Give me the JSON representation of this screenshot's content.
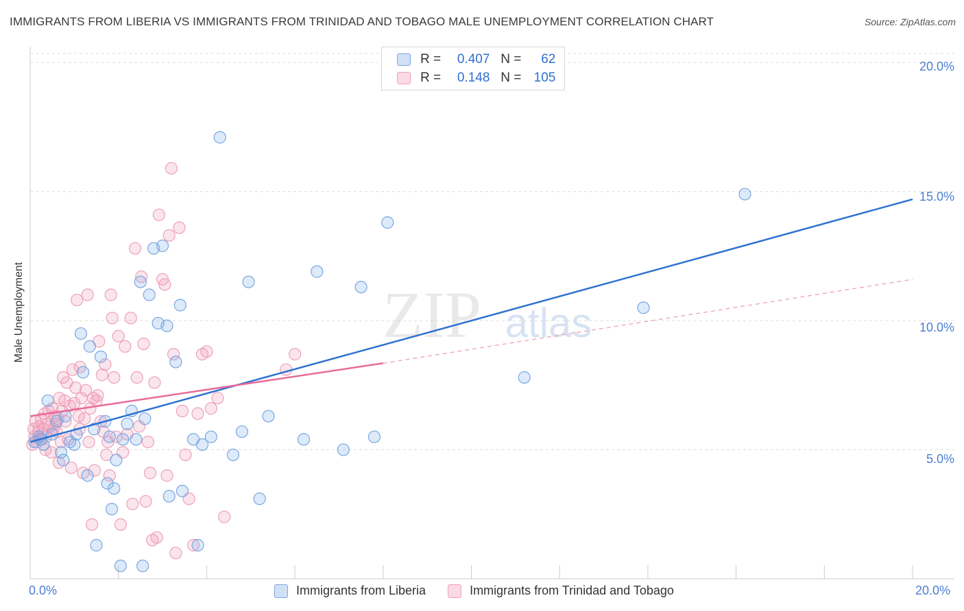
{
  "title": "IMMIGRANTS FROM LIBERIA VS IMMIGRANTS FROM TRINIDAD AND TOBAGO MALE UNEMPLOYMENT CORRELATION CHART",
  "source": "Source: ZipAtlas.com",
  "watermark": {
    "zip": "ZIP",
    "atlas": "atlas"
  },
  "legend": {
    "rows": [
      {
        "r_label": "R =",
        "r_value": "0.407",
        "n_label": "N =",
        "n_value": "62"
      },
      {
        "r_label": "R =",
        "r_value": "0.148",
        "n_label": "N =",
        "n_value": "105"
      }
    ]
  },
  "bottom_legend": [
    "Immigrants from Liberia",
    "Immigrants from Trinidad and Tobago"
  ],
  "colors": {
    "liberia_fill": "rgba(120,170,230,0.25)",
    "liberia_stroke": "#7aa6e0",
    "liberia_line": "#2f72d0",
    "trinidad_fill": "rgba(240,150,180,0.25)",
    "trinidad_stroke": "#eea0b8",
    "trinidad_line": "#e86a9a",
    "grid": "#dddddd",
    "tick_text": "#4a7fd0"
  },
  "chart_data": {
    "type": "scatter",
    "title": "IMMIGRANTS FROM LIBERIA VS IMMIGRANTS FROM TRINIDAD AND TOBAGO MALE UNEMPLOYMENT CORRELATION CHART",
    "xlabel": "",
    "ylabel": "Male Unemployment",
    "xlim": [
      0,
      20
    ],
    "ylim": [
      0,
      20
    ],
    "x_tick_labels": [
      "0.0%",
      "20.0%"
    ],
    "y_tick_labels": [
      "5.0%",
      "10.0%",
      "15.0%",
      "20.0%"
    ],
    "y_ticks": [
      5,
      10,
      15,
      20
    ],
    "grid": true,
    "legend_position": "top-center",
    "series": [
      {
        "name": "Immigrants from Liberia",
        "R": 0.407,
        "N": 62,
        "trend": {
          "x0": 0.0,
          "y0": 5.3,
          "x1": 20.0,
          "y1": 14.7
        },
        "points": [
          [
            0.1,
            5.3
          ],
          [
            0.2,
            5.5
          ],
          [
            0.3,
            5.2
          ],
          [
            0.4,
            6.9
          ],
          [
            0.5,
            5.6
          ],
          [
            0.6,
            6.1
          ],
          [
            0.7,
            4.9
          ],
          [
            0.75,
            4.6
          ],
          [
            0.8,
            6.3
          ],
          [
            0.9,
            5.3
          ],
          [
            1.0,
            5.2
          ],
          [
            1.05,
            5.6
          ],
          [
            1.15,
            9.5
          ],
          [
            1.2,
            8.0
          ],
          [
            1.3,
            4.0
          ],
          [
            1.35,
            9.0
          ],
          [
            1.45,
            5.8
          ],
          [
            1.5,
            1.3
          ],
          [
            1.6,
            8.6
          ],
          [
            1.7,
            6.1
          ],
          [
            1.75,
            3.7
          ],
          [
            1.85,
            2.7
          ],
          [
            1.9,
            3.5
          ],
          [
            1.95,
            4.6
          ],
          [
            2.05,
            0.5
          ],
          [
            2.1,
            5.4
          ],
          [
            2.2,
            6.0
          ],
          [
            2.3,
            6.5
          ],
          [
            2.4,
            5.4
          ],
          [
            2.5,
            11.5
          ],
          [
            2.55,
            0.5
          ],
          [
            2.6,
            6.2
          ],
          [
            2.7,
            11.0
          ],
          [
            2.8,
            12.8
          ],
          [
            2.9,
            9.9
          ],
          [
            3.0,
            12.9
          ],
          [
            3.1,
            9.8
          ],
          [
            3.15,
            3.2
          ],
          [
            3.3,
            8.4
          ],
          [
            3.4,
            10.6
          ],
          [
            3.45,
            3.4
          ],
          [
            3.7,
            5.4
          ],
          [
            3.8,
            1.3
          ],
          [
            3.9,
            5.2
          ],
          [
            4.1,
            5.5
          ],
          [
            4.3,
            17.1
          ],
          [
            4.6,
            4.8
          ],
          [
            4.8,
            5.7
          ],
          [
            4.95,
            11.5
          ],
          [
            5.2,
            3.1
          ],
          [
            5.4,
            6.3
          ],
          [
            6.2,
            5.4
          ],
          [
            6.5,
            11.9
          ],
          [
            7.1,
            5.0
          ],
          [
            7.5,
            11.3
          ],
          [
            7.8,
            5.5
          ],
          [
            8.1,
            13.8
          ],
          [
            11.2,
            7.8
          ],
          [
            13.9,
            10.5
          ],
          [
            16.2,
            14.9
          ],
          [
            0.25,
            5.4
          ],
          [
            1.8,
            5.5
          ]
        ]
      },
      {
        "name": "Immigrants from Trinidad and Tobago",
        "R": 0.148,
        "N": 105,
        "trend_solid": {
          "x0": 0.0,
          "y0": 6.3,
          "x1": 8.0,
          "y1": 8.35
        },
        "trend_dashed": {
          "x0": 8.0,
          "y0": 8.35,
          "x1": 20.0,
          "y1": 11.6
        },
        "points": [
          [
            0.05,
            5.2
          ],
          [
            0.08,
            5.8
          ],
          [
            0.1,
            5.5
          ],
          [
            0.12,
            6.1
          ],
          [
            0.15,
            5.3
          ],
          [
            0.18,
            5.7
          ],
          [
            0.2,
            5.9
          ],
          [
            0.22,
            5.4
          ],
          [
            0.25,
            6.2
          ],
          [
            0.28,
            5.6
          ],
          [
            0.3,
            5.8
          ],
          [
            0.33,
            6.4
          ],
          [
            0.36,
            5.5
          ],
          [
            0.4,
            6.0
          ],
          [
            0.42,
            6.5
          ],
          [
            0.45,
            5.9
          ],
          [
            0.48,
            4.9
          ],
          [
            0.5,
            6.6
          ],
          [
            0.52,
            5.8
          ],
          [
            0.55,
            6.3
          ],
          [
            0.58,
            6.0
          ],
          [
            0.6,
            5.7
          ],
          [
            0.63,
            6.2
          ],
          [
            0.66,
            7.0
          ],
          [
            0.7,
            5.3
          ],
          [
            0.72,
            6.5
          ],
          [
            0.75,
            7.8
          ],
          [
            0.78,
            6.9
          ],
          [
            0.8,
            6.1
          ],
          [
            0.83,
            7.6
          ],
          [
            0.86,
            5.4
          ],
          [
            0.9,
            6.7
          ],
          [
            0.93,
            4.3
          ],
          [
            0.96,
            8.1
          ],
          [
            1.0,
            6.8
          ],
          [
            1.03,
            7.4
          ],
          [
            1.06,
            10.8
          ],
          [
            1.1,
            6.3
          ],
          [
            1.13,
            8.2
          ],
          [
            1.16,
            7.0
          ],
          [
            1.2,
            4.1
          ],
          [
            1.23,
            6.2
          ],
          [
            1.26,
            7.3
          ],
          [
            1.3,
            11.0
          ],
          [
            1.33,
            5.3
          ],
          [
            1.36,
            6.6
          ],
          [
            1.4,
            2.1
          ],
          [
            1.43,
            7.0
          ],
          [
            1.46,
            4.2
          ],
          [
            1.5,
            6.9
          ],
          [
            1.53,
            7.1
          ],
          [
            1.56,
            9.2
          ],
          [
            1.6,
            6.1
          ],
          [
            1.63,
            7.9
          ],
          [
            1.66,
            5.7
          ],
          [
            1.7,
            8.3
          ],
          [
            1.73,
            4.8
          ],
          [
            1.76,
            5.3
          ],
          [
            1.8,
            4.0
          ],
          [
            1.83,
            11.0
          ],
          [
            1.86,
            10.1
          ],
          [
            1.9,
            7.8
          ],
          [
            1.95,
            5.5
          ],
          [
            2.0,
            9.4
          ],
          [
            2.05,
            2.1
          ],
          [
            2.1,
            4.9
          ],
          [
            2.15,
            9.0
          ],
          [
            2.2,
            5.6
          ],
          [
            2.28,
            10.1
          ],
          [
            2.32,
            2.9
          ],
          [
            2.38,
            12.8
          ],
          [
            2.42,
            7.8
          ],
          [
            2.47,
            5.9
          ],
          [
            2.52,
            11.7
          ],
          [
            2.57,
            9.1
          ],
          [
            2.62,
            3.0
          ],
          [
            2.67,
            5.3
          ],
          [
            2.72,
            4.1
          ],
          [
            2.77,
            1.5
          ],
          [
            2.82,
            7.6
          ],
          [
            2.87,
            1.6
          ],
          [
            2.92,
            14.1
          ],
          [
            3.0,
            11.6
          ],
          [
            3.05,
            11.4
          ],
          [
            3.1,
            4.0
          ],
          [
            3.15,
            13.3
          ],
          [
            3.2,
            15.9
          ],
          [
            3.25,
            8.7
          ],
          [
            3.3,
            1.0
          ],
          [
            3.38,
            13.6
          ],
          [
            3.45,
            6.5
          ],
          [
            3.52,
            4.8
          ],
          [
            3.6,
            3.1
          ],
          [
            3.7,
            1.3
          ],
          [
            3.8,
            6.4
          ],
          [
            3.9,
            8.7
          ],
          [
            4.0,
            8.8
          ],
          [
            4.1,
            6.6
          ],
          [
            4.25,
            7.0
          ],
          [
            4.4,
            2.4
          ],
          [
            5.8,
            8.1
          ],
          [
            6.0,
            8.7
          ],
          [
            0.35,
            5.0
          ],
          [
            0.65,
            4.5
          ],
          [
            1.12,
            5.8
          ]
        ]
      }
    ]
  }
}
